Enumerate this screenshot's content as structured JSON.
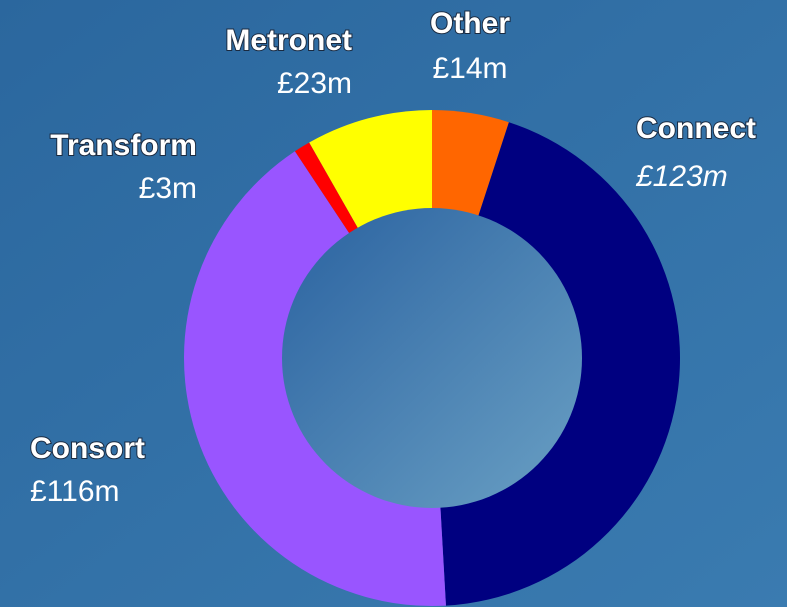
{
  "chart_data": {
    "type": "pie",
    "donut": true,
    "categories": [
      "Other",
      "Connect",
      "Consort",
      "Transform",
      "Metronet"
    ],
    "values": [
      14,
      123,
      116,
      3,
      23
    ],
    "value_labels": [
      "£14m",
      "£123m",
      "£116m",
      "£3m",
      "£23m"
    ],
    "colors": [
      "#ff6600",
      "#000080",
      "#9955ff",
      "#ff0000",
      "#ffff00"
    ]
  }
}
